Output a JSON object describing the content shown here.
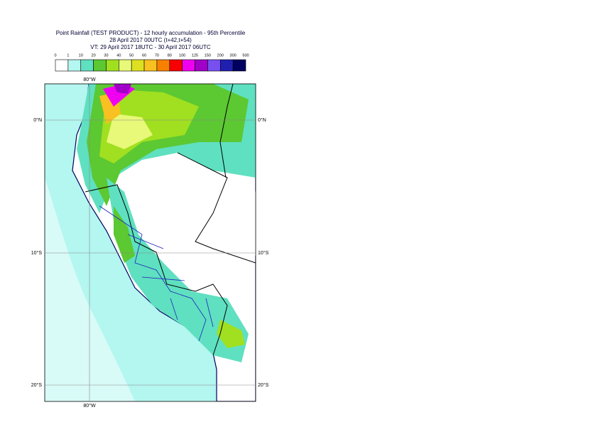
{
  "header": {
    "lines": [
      "Point Rainfall (TEST PRODUCT) - 12 hourly accumulation - 95th Percentile",
      "28 April 2017 00UTC (t+42,t+54)",
      "VT: 29 April 2017 18UTC - 30 April 2017 06UTC"
    ]
  },
  "legend": {
    "labels": [
      "0",
      "1",
      "10",
      "20",
      "30",
      "40",
      "50",
      "60",
      "70",
      "80",
      "100",
      "125",
      "150",
      "200",
      "300",
      "500"
    ],
    "colors": [
      "#ffffff",
      "#b4f6f0",
      "#5fe0c0",
      "#5cc832",
      "#a0e020",
      "#e8f878",
      "#dce020",
      "#f8c020",
      "#f88000",
      "#f80000",
      "#f000f0",
      "#a000c8",
      "#7850f0",
      "#2020b0",
      "#000060"
    ]
  },
  "map": {
    "top_labels": [
      "80°W"
    ],
    "bottom_labels": [
      "80°W"
    ],
    "left_labels": [
      "0°N",
      "10°S",
      "20°S"
    ],
    "right_labels": [
      "0°N",
      "10°S",
      "20°S"
    ]
  }
}
